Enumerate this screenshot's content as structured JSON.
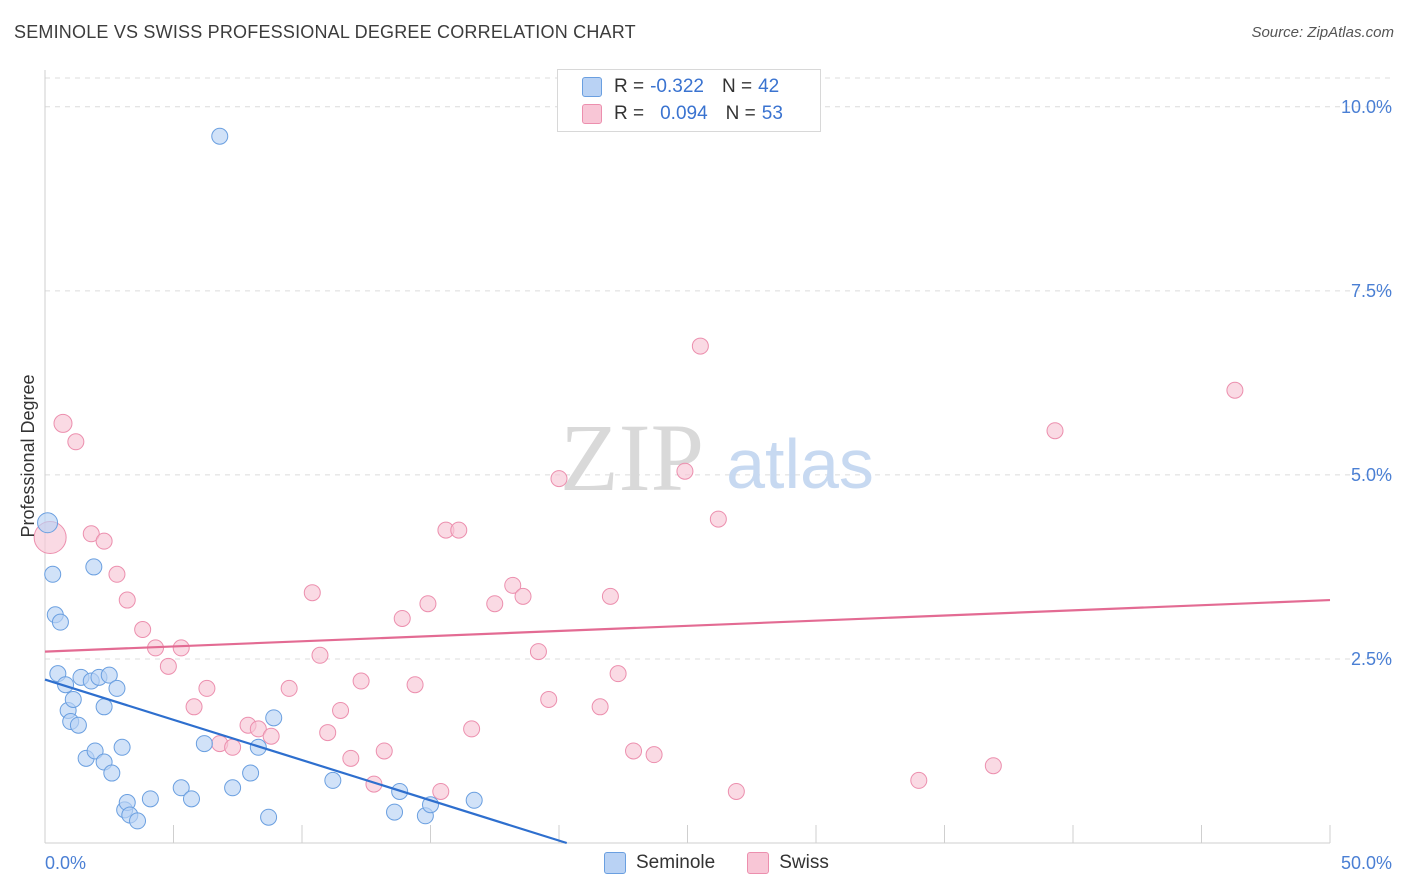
{
  "header": {
    "title": "SEMINOLE VS SWISS PROFESSIONAL DEGREE CORRELATION CHART",
    "source": "Source: ZipAtlas.com"
  },
  "legend": {
    "rows": [
      {
        "r_label": "R =",
        "r_value": "-0.322",
        "n_label": "N =",
        "n_value": "42"
      },
      {
        "r_label": "R =",
        "r_value": "0.094",
        "n_label": "N =",
        "n_value": "53"
      }
    ]
  },
  "colors": {
    "seminole_fill": "#b9d2f4",
    "seminole_stroke": "#6a9fe0",
    "seminole_line": "#2e6fce",
    "swiss_fill": "#f8c6d6",
    "swiss_stroke": "#ec8fae",
    "swiss_line": "#e36b93",
    "grid": "#dcdcdc",
    "watermark": "#d9d9d9",
    "watermark_atlas": "#c7d9f1"
  },
  "watermark": {
    "zip": "ZIP",
    "atlas": "atlas"
  },
  "chart_data": {
    "type": "scatter",
    "title": "SEMINOLE VS SWISS PROFESSIONAL DEGREE CORRELATION CHART",
    "xlabel": "",
    "ylabel": "Professional Degree",
    "xlim": [
      0,
      50
    ],
    "ylim": [
      0,
      10.5
    ],
    "x_tick_labels": [
      "0.0%",
      "50.0%"
    ],
    "y_ticks": [
      2.5,
      5.0,
      7.5,
      10.0
    ],
    "y_tick_labels": [
      "2.5%",
      "5.0%",
      "7.5%",
      "10.0%"
    ],
    "legend_entries": [
      "Seminole",
      "Swiss"
    ],
    "series": [
      {
        "name": "Seminole",
        "r": -0.322,
        "n": 42,
        "trend": {
          "x0": 0,
          "y0": 2.22,
          "x1": 20.3,
          "y1": 0.0
        },
        "points": [
          [
            0.1,
            4.35,
            10
          ],
          [
            0.3,
            3.65,
            8
          ],
          [
            0.4,
            3.1,
            8
          ],
          [
            0.5,
            2.3,
            8
          ],
          [
            0.6,
            3.0,
            8
          ],
          [
            0.8,
            2.15,
            8
          ],
          [
            0.9,
            1.8,
            8
          ],
          [
            1.0,
            1.65,
            8
          ],
          [
            1.1,
            1.95,
            8
          ],
          [
            1.3,
            1.6,
            8
          ],
          [
            1.4,
            2.25,
            8
          ],
          [
            1.6,
            1.15,
            8
          ],
          [
            1.8,
            2.2,
            8
          ],
          [
            1.9,
            3.75,
            8
          ],
          [
            1.95,
            1.25,
            8
          ],
          [
            2.1,
            2.25,
            8
          ],
          [
            2.3,
            1.1,
            8
          ],
          [
            2.3,
            1.85,
            8
          ],
          [
            2.5,
            2.28,
            8
          ],
          [
            2.6,
            0.95,
            8
          ],
          [
            2.8,
            2.1,
            8
          ],
          [
            3.0,
            1.3,
            8
          ],
          [
            3.1,
            0.45,
            8
          ],
          [
            3.2,
            0.55,
            8
          ],
          [
            3.3,
            0.38,
            8
          ],
          [
            3.6,
            0.3,
            8
          ],
          [
            4.1,
            0.6,
            8
          ],
          [
            5.3,
            0.75,
            8
          ],
          [
            5.7,
            0.6,
            8
          ],
          [
            6.2,
            1.35,
            8
          ],
          [
            6.8,
            9.6,
            8
          ],
          [
            7.3,
            0.75,
            8
          ],
          [
            8.0,
            0.95,
            8
          ],
          [
            8.3,
            1.3,
            8
          ],
          [
            8.7,
            0.35,
            8
          ],
          [
            8.9,
            1.7,
            8
          ],
          [
            11.2,
            0.85,
            8
          ],
          [
            13.6,
            0.42,
            8
          ],
          [
            13.8,
            0.7,
            8
          ],
          [
            14.8,
            0.37,
            8
          ],
          [
            15.0,
            0.52,
            8
          ],
          [
            16.7,
            0.58,
            8
          ]
        ]
      },
      {
        "name": "Swiss",
        "r": 0.094,
        "n": 53,
        "trend": {
          "x0": 0,
          "y0": 2.6,
          "x1": 50,
          "y1": 3.3
        },
        "points": [
          [
            0.2,
            4.15,
            16
          ],
          [
            0.7,
            5.7,
            9
          ],
          [
            1.2,
            5.45,
            8
          ],
          [
            1.8,
            4.2,
            8
          ],
          [
            2.3,
            4.1,
            8
          ],
          [
            2.8,
            3.65,
            8
          ],
          [
            3.2,
            3.3,
            8
          ],
          [
            3.8,
            2.9,
            8
          ],
          [
            4.3,
            2.65,
            8
          ],
          [
            4.8,
            2.4,
            8
          ],
          [
            5.3,
            2.65,
            8
          ],
          [
            5.8,
            1.85,
            8
          ],
          [
            6.3,
            2.1,
            8
          ],
          [
            6.8,
            1.35,
            8
          ],
          [
            7.3,
            1.3,
            8
          ],
          [
            7.9,
            1.6,
            8
          ],
          [
            8.3,
            1.55,
            8
          ],
          [
            8.8,
            1.45,
            8
          ],
          [
            9.5,
            2.1,
            8
          ],
          [
            10.4,
            3.4,
            8
          ],
          [
            10.7,
            2.55,
            8
          ],
          [
            11.0,
            1.5,
            8
          ],
          [
            11.5,
            1.8,
            8
          ],
          [
            11.9,
            1.15,
            8
          ],
          [
            12.3,
            2.2,
            8
          ],
          [
            12.8,
            0.8,
            8
          ],
          [
            13.2,
            1.25,
            8
          ],
          [
            13.9,
            3.05,
            8
          ],
          [
            14.4,
            2.15,
            8
          ],
          [
            14.9,
            3.25,
            8
          ],
          [
            15.4,
            0.7,
            8
          ],
          [
            15.6,
            4.25,
            8
          ],
          [
            16.1,
            4.25,
            8
          ],
          [
            16.6,
            1.55,
            8
          ],
          [
            17.5,
            3.25,
            8
          ],
          [
            18.2,
            3.5,
            8
          ],
          [
            18.6,
            3.35,
            8
          ],
          [
            19.2,
            2.6,
            8
          ],
          [
            19.6,
            1.95,
            8
          ],
          [
            20.0,
            4.95,
            8
          ],
          [
            21.6,
            1.85,
            8
          ],
          [
            22.0,
            3.35,
            8
          ],
          [
            22.3,
            2.3,
            8
          ],
          [
            22.9,
            1.25,
            8
          ],
          [
            23.7,
            1.2,
            8
          ],
          [
            24.9,
            5.05,
            8
          ],
          [
            25.5,
            6.75,
            8
          ],
          [
            26.2,
            4.4,
            8
          ],
          [
            26.9,
            0.7,
            8
          ],
          [
            34.0,
            0.85,
            8
          ],
          [
            36.9,
            1.05,
            8
          ],
          [
            39.3,
            5.6,
            8
          ],
          [
            46.3,
            6.15,
            8
          ]
        ]
      }
    ]
  }
}
